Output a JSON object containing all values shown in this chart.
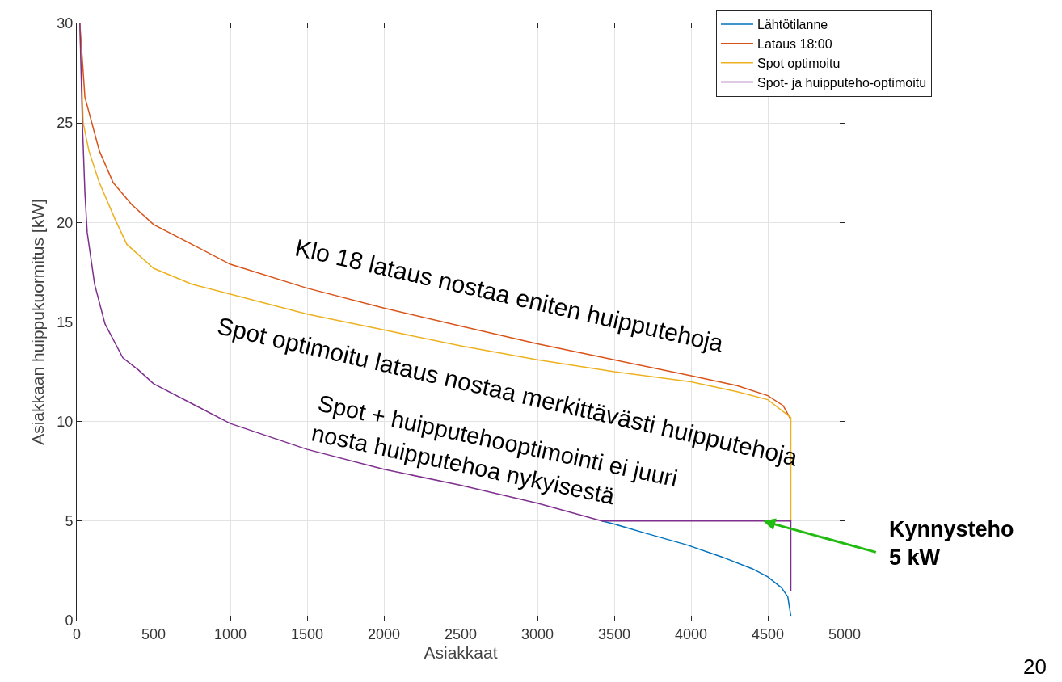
{
  "chart_data": {
    "type": "line",
    "xlabel": "Asiakkaat",
    "ylabel": "Asiakkaan huippukuormitus [kW]",
    "xlim": [
      0,
      5000
    ],
    "xticks": [
      0,
      500,
      1000,
      1500,
      2000,
      2500,
      3000,
      3500,
      4000,
      4500,
      5000
    ],
    "ylim": [
      0,
      30
    ],
    "yticks": [
      0,
      5,
      10,
      15,
      20,
      25,
      30
    ],
    "grid": true,
    "legend": "top right",
    "marker": "none",
    "line_style": "solid",
    "series": [
      {
        "name": "Lähtötilanne",
        "color": "#0072bd",
        "x": [
          3420,
          3500,
          3700,
          3974,
          4200,
          4400,
          4500,
          4589,
          4630,
          4650
        ],
        "values": [
          5.0,
          4.85,
          4.4,
          3.8,
          3.2,
          2.6,
          2.2,
          1.65,
          1.2,
          0.24
        ]
      },
      {
        "name": "Lataus 18:00",
        "color": "#d95319",
        "x": [
          20,
          53,
          147,
          237,
          358,
          500,
          750,
          1000,
          1500,
          2000,
          2500,
          3000,
          3500,
          4000,
          4300,
          4500,
          4600,
          4650
        ],
        "values": [
          30,
          26.3,
          23.6,
          22.0,
          20.9,
          19.9,
          18.9,
          17.9,
          16.7,
          15.7,
          14.8,
          13.9,
          13.1,
          12.3,
          11.8,
          11.3,
          10.8,
          10.1
        ]
      },
      {
        "name": "Spot optimoitu",
        "color": "#edb120",
        "x": [
          20,
          42,
          79,
          147,
          253,
          326,
          500,
          750,
          1000,
          1500,
          2000,
          2500,
          3000,
          3500,
          4000,
          4300,
          4500,
          4650,
          4650
        ],
        "values": [
          30,
          25.0,
          23.6,
          22.0,
          20.1,
          18.9,
          17.7,
          16.9,
          16.4,
          15.4,
          14.6,
          13.8,
          13.1,
          12.5,
          12.0,
          11.5,
          11.1,
          10.2,
          5.0
        ]
      },
      {
        "name": "Spot- ja huipputeho-optimoitu",
        "color": "#7e2f8e",
        "x": [
          20,
          37,
          53,
          68,
          116,
          184,
          300,
          400,
          500,
          750,
          1000,
          1500,
          2000,
          2500,
          3000,
          3420,
          4650,
          4650
        ],
        "values": [
          30,
          24.9,
          21.5,
          19.5,
          16.9,
          14.9,
          13.2,
          12.6,
          11.9,
          10.9,
          9.9,
          8.6,
          7.6,
          6.8,
          5.9,
          5.0,
          5.0,
          1.5
        ]
      }
    ],
    "annotations": [
      "Klo 18 lataus nostaa eniten huipputehoja",
      "Spot optimoitu lataus nostaa merkittävästi huipputehoja",
      "Spot + huipputehooptimointi ei juuri\nnosta huipputehoa nykyisestä",
      {
        "text": "Kynnysteho\n5 kW",
        "x": 4470,
        "y": 5
      },
      "20"
    ]
  }
}
